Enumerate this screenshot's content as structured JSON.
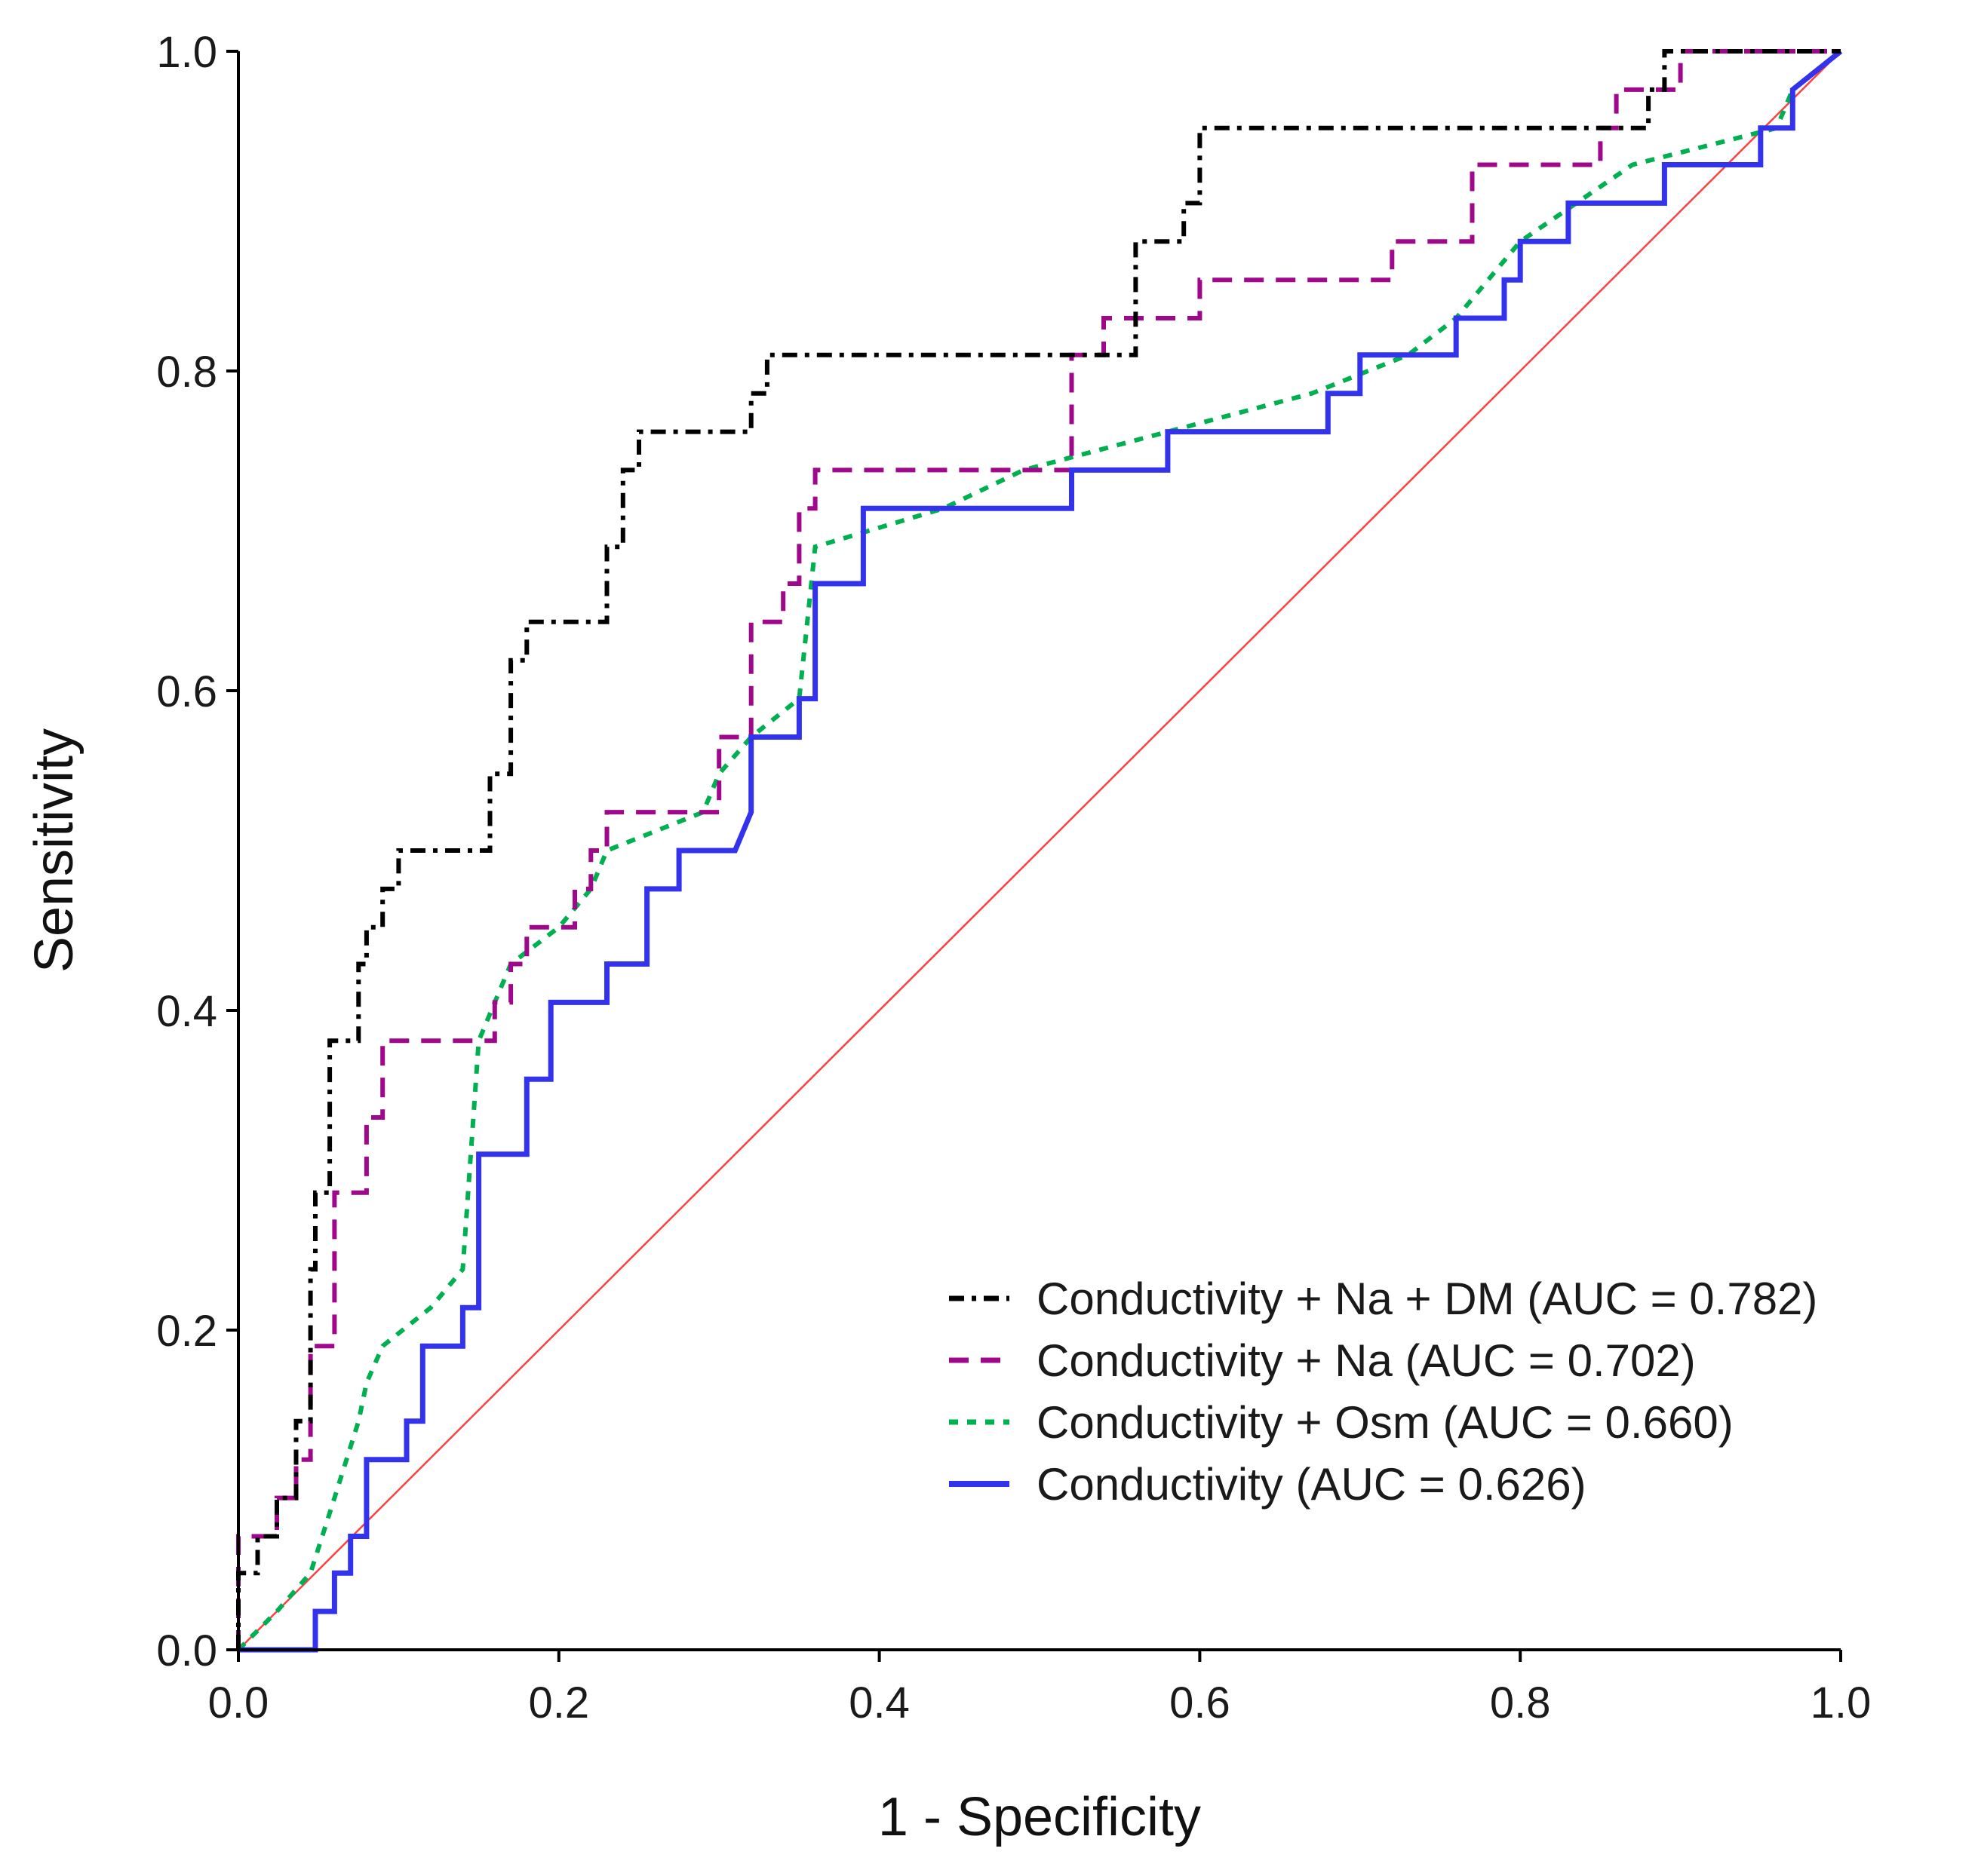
{
  "chart_data": {
    "type": "line",
    "title": "",
    "xlabel": "1 - Specificity",
    "ylabel": "Sensitivity",
    "xlim": [
      0,
      1
    ],
    "ylim": [
      0,
      1
    ],
    "x_ticks": [
      "0.0",
      "0.2",
      "0.4",
      "0.6",
      "0.8",
      "1.0"
    ],
    "y_ticks": [
      "0.0",
      "0.2",
      "0.4",
      "0.6",
      "0.8",
      "1.0"
    ],
    "grid": false,
    "legend_position": "lower-right",
    "reference_line": {
      "name": "Reference",
      "color": "#ff4040",
      "x": [
        0,
        1
      ],
      "y": [
        0,
        1
      ]
    },
    "series": [
      {
        "name": "Conductivity + Na + DM (AUC = 0.782)",
        "color": "#000000",
        "dash": "dashdot",
        "x": [
          0,
          0,
          0.012,
          0.012,
          0.024,
          0.024,
          0.036,
          0.036,
          0.045,
          0.045,
          0.048,
          0.048,
          0.057,
          0.057,
          0.06,
          0.06,
          0.075,
          0.075,
          0.08,
          0.08,
          0.09,
          0.09,
          0.1,
          0.1,
          0.157,
          0.157,
          0.17,
          0.17,
          0.18,
          0.18,
          0.23,
          0.23,
          0.24,
          0.24,
          0.25,
          0.25,
          0.32,
          0.32,
          0.33,
          0.33,
          0.56,
          0.56,
          0.59,
          0.59,
          0.6,
          0.6,
          0.88,
          0.88,
          0.89,
          0.89,
          1.0
        ],
        "y": [
          0,
          0.048,
          0.048,
          0.071,
          0.071,
          0.095,
          0.095,
          0.143,
          0.143,
          0.238,
          0.238,
          0.286,
          0.286,
          0.381,
          0.381,
          0.381,
          0.381,
          0.429,
          0.429,
          0.452,
          0.452,
          0.476,
          0.476,
          0.5,
          0.5,
          0.548,
          0.548,
          0.619,
          0.619,
          0.643,
          0.643,
          0.69,
          0.69,
          0.738,
          0.738,
          0.762,
          0.762,
          0.786,
          0.786,
          0.81,
          0.81,
          0.881,
          0.881,
          0.905,
          0.905,
          0.952,
          0.952,
          0.976,
          0.976,
          1.0,
          1.0
        ]
      },
      {
        "name": "Conductivity + Na (AUC = 0.702)",
        "color": "#a0088c",
        "dash": "dashed",
        "x": [
          0,
          0,
          0.024,
          0.024,
          0.036,
          0.036,
          0.045,
          0.045,
          0.06,
          0.06,
          0.08,
          0.08,
          0.09,
          0.09,
          0.16,
          0.16,
          0.17,
          0.17,
          0.18,
          0.18,
          0.21,
          0.21,
          0.22,
          0.22,
          0.23,
          0.23,
          0.3,
          0.3,
          0.32,
          0.32,
          0.34,
          0.34,
          0.35,
          0.35,
          0.36,
          0.36,
          0.52,
          0.52,
          0.54,
          0.54,
          0.6,
          0.6,
          0.72,
          0.72,
          0.75,
          0.75,
          0.77,
          0.77,
          0.83,
          0.83,
          0.85,
          0.85,
          0.86,
          0.86,
          0.9,
          0.9,
          0.97,
          0.97,
          1.0
        ],
        "y": [
          0,
          0.071,
          0.071,
          0.095,
          0.095,
          0.119,
          0.119,
          0.19,
          0.19,
          0.286,
          0.286,
          0.333,
          0.333,
          0.381,
          0.381,
          0.405,
          0.405,
          0.429,
          0.429,
          0.452,
          0.452,
          0.476,
          0.476,
          0.5,
          0.5,
          0.524,
          0.524,
          0.571,
          0.571,
          0.643,
          0.643,
          0.667,
          0.667,
          0.714,
          0.714,
          0.738,
          0.738,
          0.81,
          0.81,
          0.833,
          0.833,
          0.857,
          0.857,
          0.881,
          0.881,
          0.881,
          0.881,
          0.929,
          0.929,
          0.929,
          0.929,
          0.952,
          0.952,
          0.976,
          0.976,
          1.0,
          1.0,
          1.0,
          1.0
        ]
      },
      {
        "name": "Conductivity + Osm (AUC = 0.660)",
        "color": "#00b050",
        "dash": "dotted",
        "x": [
          0,
          0.024,
          0.024,
          0.045,
          0.045,
          0.06,
          0.06,
          0.075,
          0.075,
          0.08,
          0.08,
          0.09,
          0.09,
          0.12,
          0.12,
          0.14,
          0.14,
          0.15,
          0.15,
          0.17,
          0.17,
          0.2,
          0.2,
          0.22,
          0.22,
          0.23,
          0.23,
          0.29,
          0.29,
          0.3,
          0.3,
          0.32,
          0.32,
          0.35,
          0.35,
          0.36,
          0.36,
          0.44,
          0.44,
          0.49,
          0.49,
          0.58,
          0.58,
          0.67,
          0.67,
          0.73,
          0.73,
          0.76,
          0.76,
          0.8,
          0.8,
          0.87,
          0.87,
          0.96,
          0.96,
          0.97,
          0.97,
          1.0
        ],
        "y": [
          0,
          0.024,
          0.024,
          0.048,
          0.048,
          0.095,
          0.095,
          0.143,
          0.143,
          0.167,
          0.167,
          0.19,
          0.19,
          0.214,
          0.214,
          0.238,
          0.238,
          0.381,
          0.381,
          0.429,
          0.429,
          0.452,
          0.452,
          0.476,
          0.476,
          0.5,
          0.5,
          0.524,
          0.524,
          0.548,
          0.548,
          0.571,
          0.571,
          0.595,
          0.595,
          0.69,
          0.69,
          0.714,
          0.714,
          0.738,
          0.738,
          0.762,
          0.762,
          0.786,
          0.786,
          0.81,
          0.81,
          0.833,
          0.833,
          0.881,
          0.881,
          0.929,
          0.929,
          0.952,
          0.952,
          0.976,
          0.976,
          1.0
        ]
      },
      {
        "name": "Conductivity (AUC = 0.626)",
        "color": "#3333ee",
        "dash": "solid",
        "x": [
          0,
          0.048,
          0.048,
          0.06,
          0.06,
          0.07,
          0.07,
          0.08,
          0.08,
          0.105,
          0.105,
          0.115,
          0.115,
          0.14,
          0.14,
          0.15,
          0.15,
          0.18,
          0.18,
          0.195,
          0.195,
          0.23,
          0.23,
          0.255,
          0.255,
          0.275,
          0.275,
          0.31,
          0.32,
          0.32,
          0.35,
          0.35,
          0.36,
          0.36,
          0.39,
          0.39,
          0.52,
          0.52,
          0.58,
          0.58,
          0.68,
          0.68,
          0.7,
          0.7,
          0.76,
          0.76,
          0.79,
          0.79,
          0.8,
          0.8,
          0.83,
          0.83,
          0.89,
          0.89,
          0.95,
          0.95,
          0.97,
          0.97,
          1.0
        ],
        "y": [
          0,
          0,
          0.024,
          0.024,
          0.048,
          0.048,
          0.071,
          0.071,
          0.119,
          0.119,
          0.143,
          0.143,
          0.19,
          0.19,
          0.214,
          0.214,
          0.31,
          0.31,
          0.357,
          0.357,
          0.405,
          0.405,
          0.429,
          0.429,
          0.476,
          0.476,
          0.5,
          0.5,
          0.524,
          0.571,
          0.571,
          0.595,
          0.595,
          0.667,
          0.667,
          0.714,
          0.714,
          0.738,
          0.738,
          0.762,
          0.762,
          0.786,
          0.786,
          0.81,
          0.81,
          0.833,
          0.833,
          0.857,
          0.857,
          0.881,
          0.881,
          0.905,
          0.905,
          0.929,
          0.929,
          0.952,
          0.952,
          0.976,
          1.0
        ]
      }
    ]
  }
}
